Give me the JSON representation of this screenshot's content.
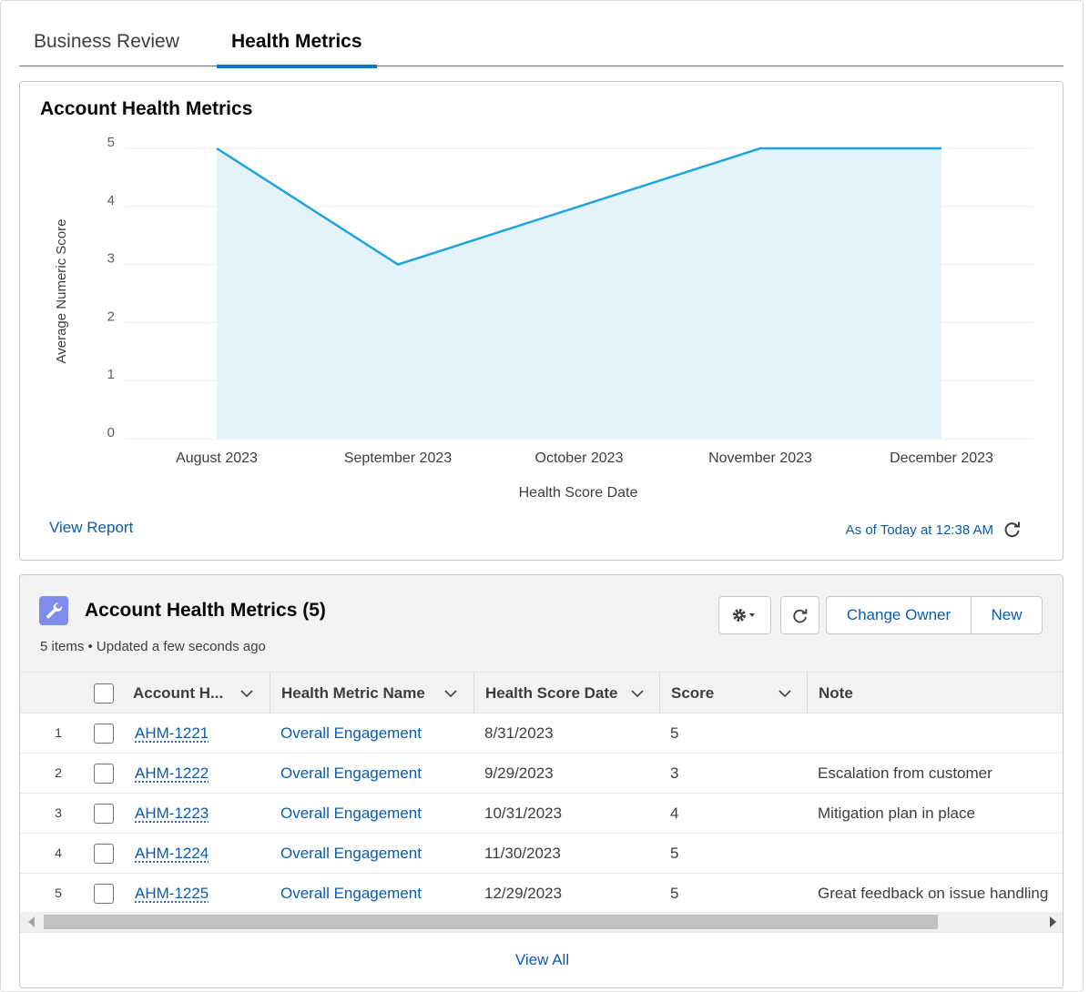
{
  "tabs": [
    {
      "label": "Business Review",
      "active": false
    },
    {
      "label": "Health Metrics",
      "active": true
    }
  ],
  "chart_card": {
    "title": "Account Health Metrics",
    "view_report": "View Report",
    "as_of": "As of Today at 12:38 AM"
  },
  "chart_data": {
    "type": "area",
    "title": "",
    "xlabel": "Health Score Date",
    "ylabel": "Average Numeric Score",
    "categories": [
      "August 2023",
      "September 2023",
      "October 2023",
      "November 2023",
      "December 2023"
    ],
    "values": [
      5,
      3,
      4,
      5,
      5
    ],
    "yticks": [
      0,
      1,
      2,
      3,
      4,
      5
    ],
    "ylim": [
      0,
      5
    ],
    "grid": true,
    "line_color": "#1fa4de",
    "fill_color": "#e2f3fa"
  },
  "related_list": {
    "title": "Account Health Metrics (5)",
    "subtitle": "5 items • Updated a few seconds ago",
    "buttons": {
      "change_owner": "Change Owner",
      "new": "New"
    },
    "columns": [
      "Account H...",
      "Health Metric Name",
      "Health Score Date",
      "Score",
      "Note"
    ],
    "rows": [
      {
        "num": "1",
        "account": "AHM-1221",
        "metric": "Overall Engagement",
        "date": "8/31/2023",
        "score": "5",
        "note": ""
      },
      {
        "num": "2",
        "account": "AHM-1222",
        "metric": "Overall Engagement",
        "date": "9/29/2023",
        "score": "3",
        "note": "Escalation from customer"
      },
      {
        "num": "3",
        "account": "AHM-1223",
        "metric": "Overall Engagement",
        "date": "10/31/2023",
        "score": "4",
        "note": "Mitigation plan in place"
      },
      {
        "num": "4",
        "account": "AHM-1224",
        "metric": "Overall Engagement",
        "date": "11/30/2023",
        "score": "5",
        "note": ""
      },
      {
        "num": "5",
        "account": "AHM-1225",
        "metric": "Overall Engagement",
        "date": "12/29/2023",
        "score": "5",
        "note": "Great feedback on issue handling"
      }
    ],
    "view_all": "View All"
  },
  "colors": {
    "brand": "#0176d3",
    "link": "#0b5cab",
    "list_icon": "#7f8ced"
  },
  "icons": {
    "list_icon": "wrench-icon",
    "settings": "gear-icon",
    "refresh": "refresh-icon",
    "sort": "chevron-down-icon"
  }
}
